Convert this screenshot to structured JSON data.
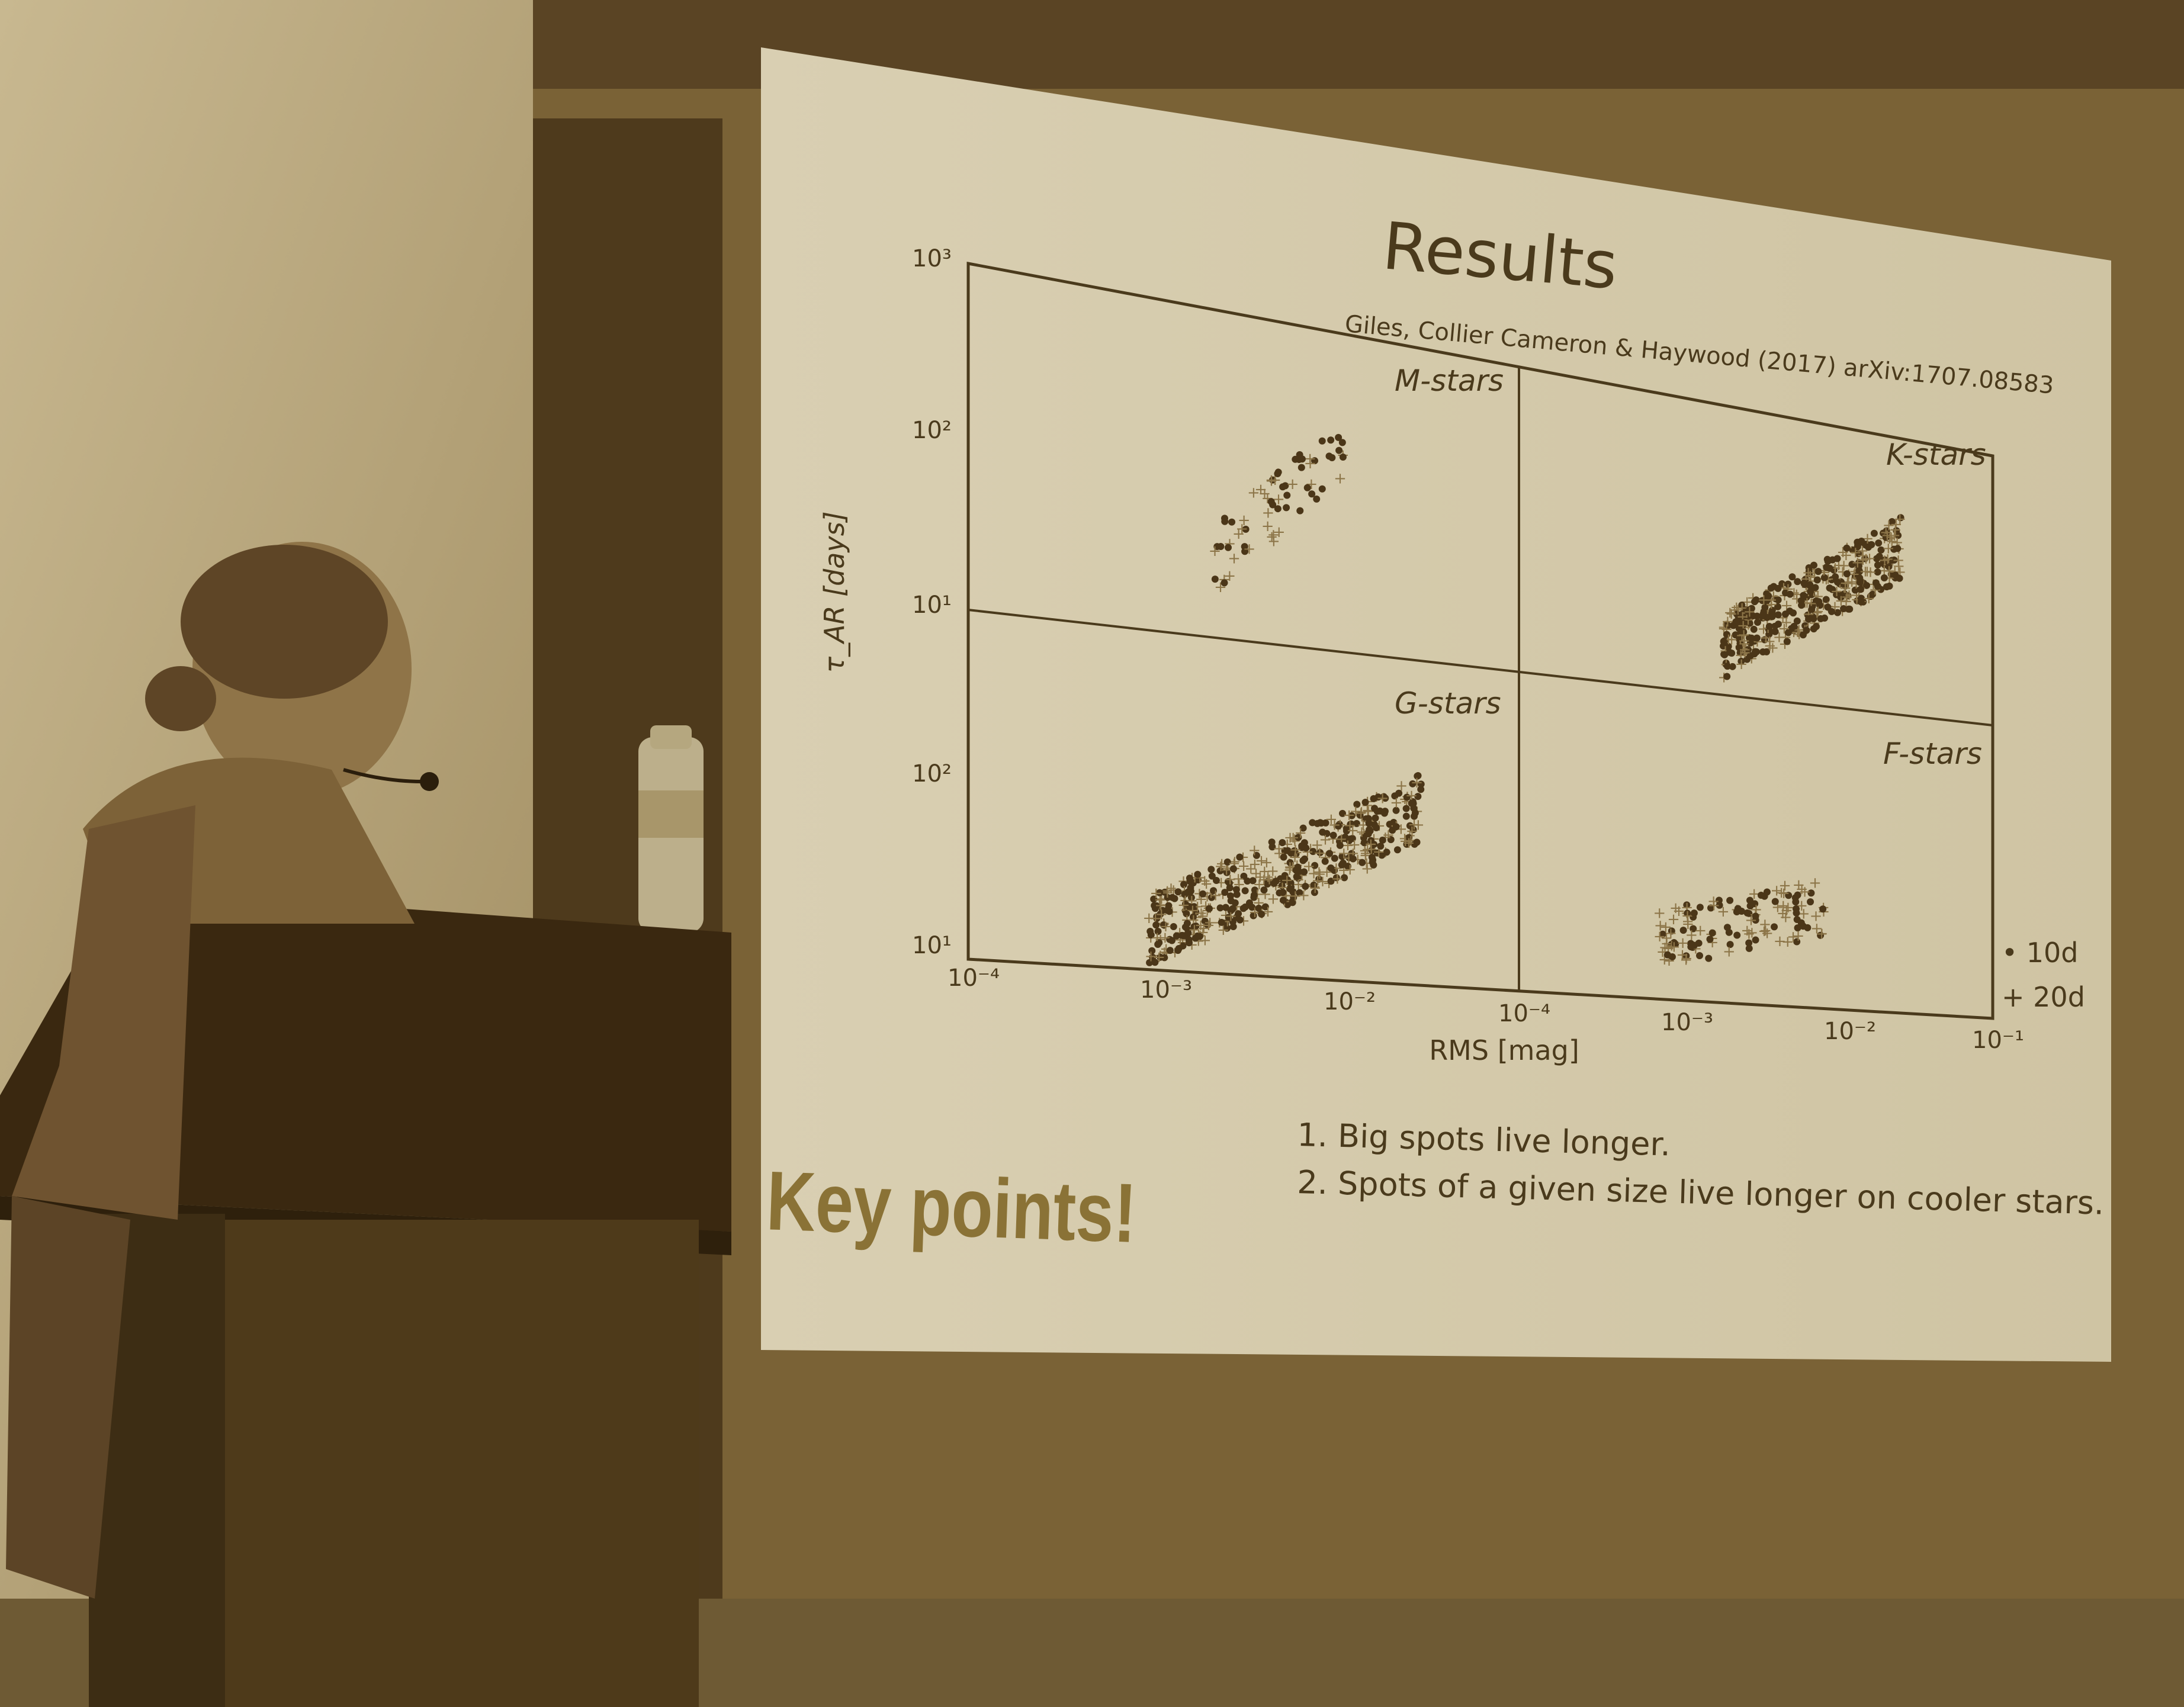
{
  "slide": {
    "title": "Results",
    "citation": "Giles, Collier Cameron & Haywood (2017) arXiv:1707.08583",
    "y_axis_label": "τ_AR [days]",
    "x_axis_label": "RMS [mag]",
    "y_ticks_top": [
      "10³",
      "10²",
      "10¹"
    ],
    "y_ticks_bottom": [
      "10²",
      "10¹"
    ],
    "x_ticks_left": [
      "10⁻⁴",
      "10⁻³",
      "10⁻²"
    ],
    "x_ticks_right": [
      "10⁻⁴",
      "10⁻³",
      "10⁻²",
      "10⁻¹"
    ],
    "panels": {
      "m": "M-stars",
      "k": "K-stars",
      "g": "G-stars",
      "f": "F-stars"
    },
    "legend": {
      "dot": "• 10d",
      "plus": "+ 20d"
    },
    "key_points_heading": "Key points!",
    "key_points": [
      "1.  Big spots live longer.",
      "2.  Spots of a given size live longer on cooler stars."
    ]
  },
  "colors": {
    "sepia_dark": "#4a3a1c",
    "sepia_slide": "#d6ccae",
    "dot": "#4b3618",
    "plus": "#8c7548"
  }
}
